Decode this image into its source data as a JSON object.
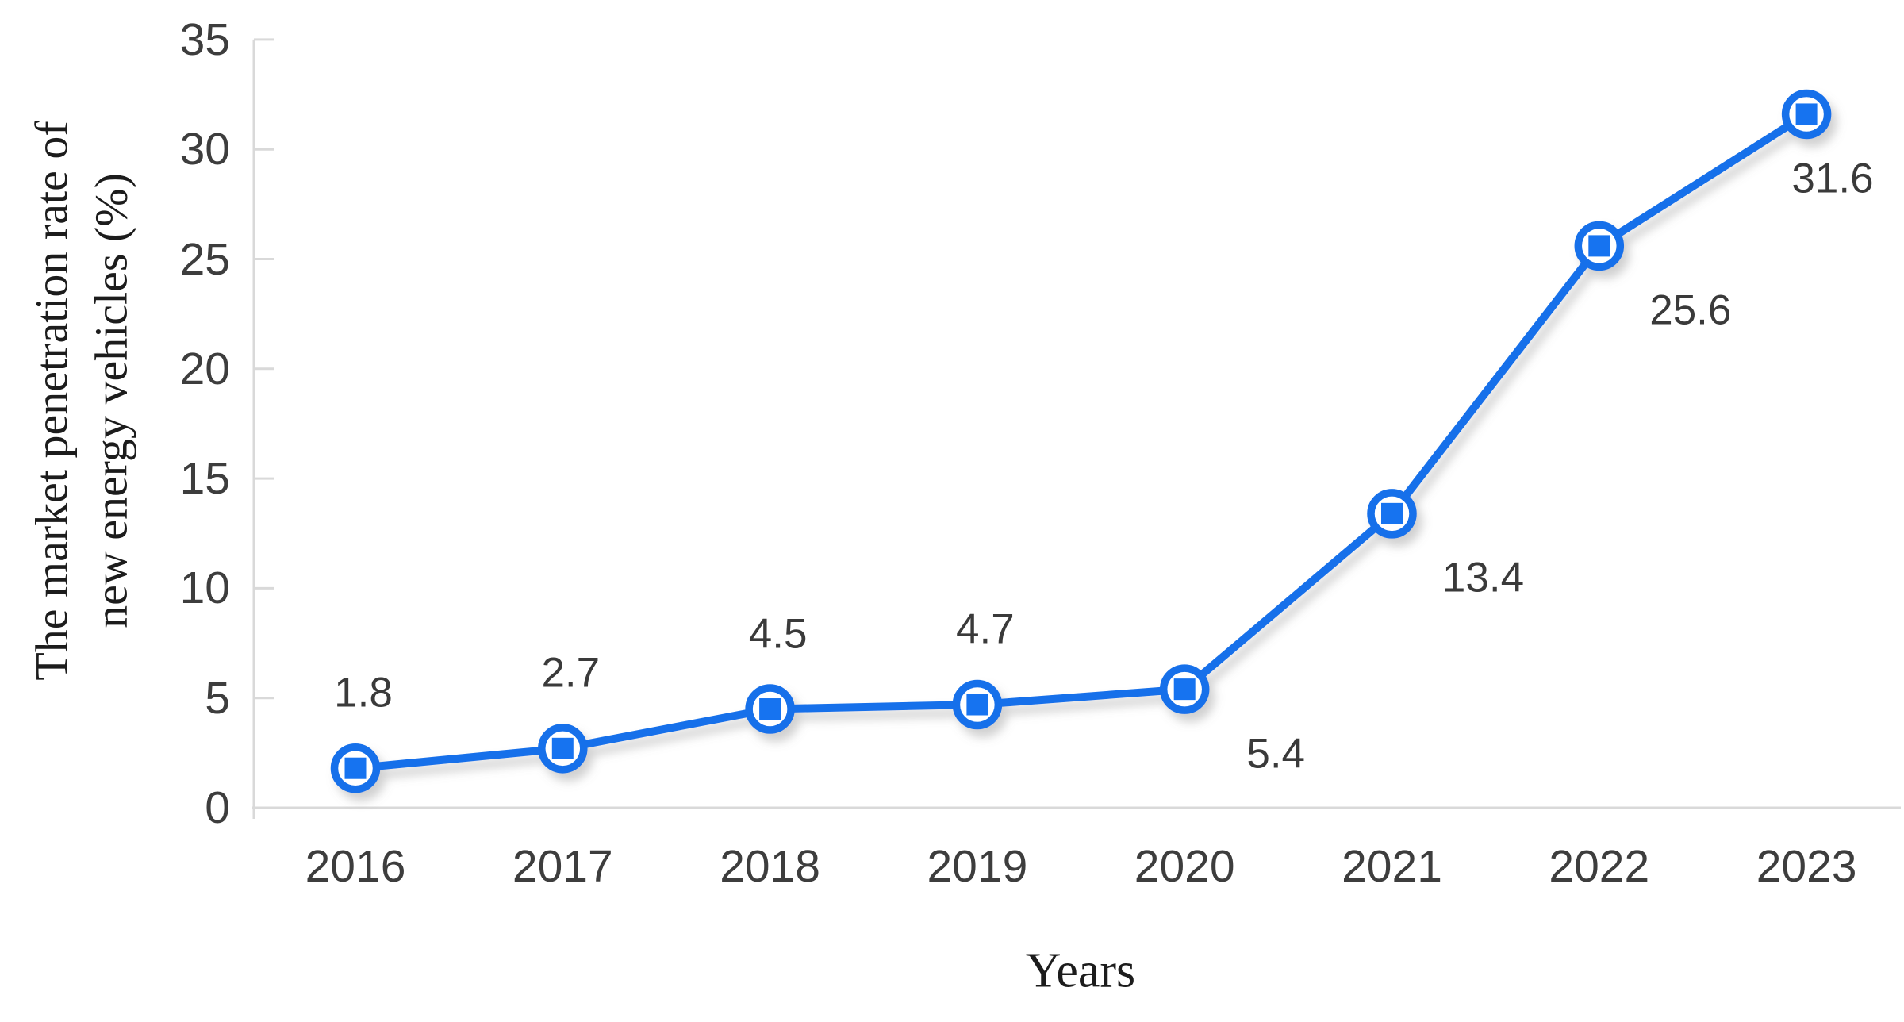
{
  "chart_data": {
    "type": "line",
    "title": "",
    "xlabel": "Years",
    "ylabel_lines": [
      "The market penetration rate of",
      "new energy vehicles (%)"
    ],
    "categories": [
      "2016",
      "2017",
      "2018",
      "2019",
      "2020",
      "2021",
      "2022",
      "2023"
    ],
    "series": [
      {
        "name": "market-penetration-rate",
        "values": [
          1.8,
          2.7,
          4.5,
          4.7,
          5.4,
          13.4,
          25.6,
          31.6
        ]
      }
    ],
    "point_labels": [
      "1.8",
      "2.7",
      "4.5",
      "4.7",
      "5.4",
      "13.4",
      "25.6",
      "31.6"
    ],
    "label_positions": [
      "above",
      "above",
      "above",
      "above",
      "below-right",
      "below-right",
      "below-right",
      "below-right"
    ],
    "ylim": [
      0,
      35
    ],
    "ytick_step": 5,
    "ytick_labels": [
      "0",
      "5",
      "10",
      "15",
      "20",
      "25",
      "30",
      "35"
    ],
    "grid": "off",
    "legend": "none",
    "colors": {
      "line": "#146FEA",
      "marker_ring": "#146FEA",
      "marker_square": "#1473F0",
      "marker_fill": "#ffffff",
      "axis": "#d9d9d9",
      "tick_text": "#3d3d3d",
      "data_label_text": "#3a3a3a",
      "title_text": "#1c1c1c",
      "background": "#ffffff"
    }
  }
}
